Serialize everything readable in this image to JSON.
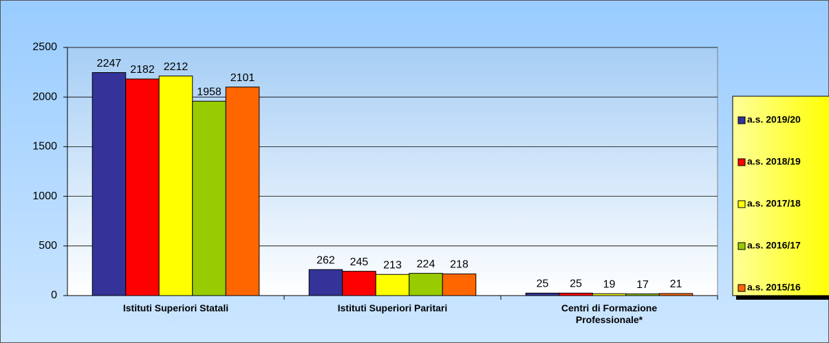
{
  "chart_data": {
    "type": "bar",
    "categories": [
      "Istituti Superiori Statali",
      "Istituti Superiori Paritari",
      "Centri di Formazione Professionale*"
    ],
    "series": [
      {
        "name": "a.s. 2019/20",
        "color": "#333399",
        "values": [
          2247,
          262,
          25
        ]
      },
      {
        "name": "a.s. 2018/19",
        "color": "#ff0000",
        "values": [
          2182,
          245,
          25
        ]
      },
      {
        "name": "a.s. 2017/18",
        "color": "#ffff00",
        "values": [
          2212,
          213,
          19
        ]
      },
      {
        "name": "a.s. 2016/17",
        "color": "#99cc00",
        "values": [
          1958,
          224,
          17
        ]
      },
      {
        "name": "a.s. 2015/16",
        "color": "#ff6600",
        "values": [
          2101,
          218,
          21
        ]
      }
    ],
    "ylim": [
      0,
      2500
    ],
    "yticks": [
      0,
      500,
      1000,
      1500,
      2000,
      2500
    ],
    "grid": true,
    "legend": "right"
  }
}
